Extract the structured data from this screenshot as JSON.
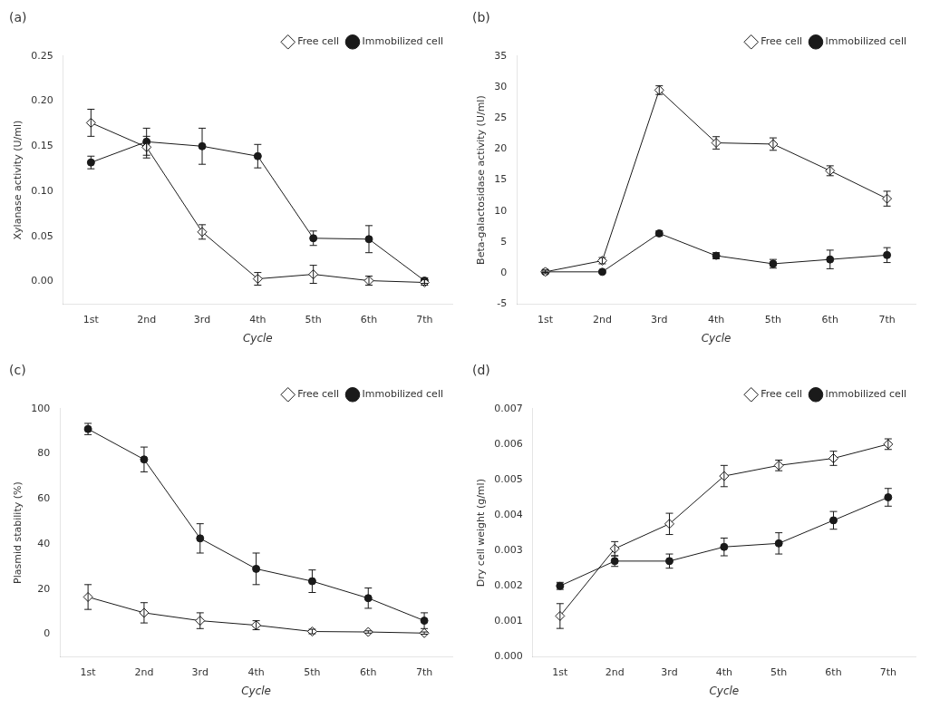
{
  "chart_data": [
    {
      "type": "line",
      "title": "(a)",
      "xlabel": "Cycle",
      "ylabel": "Xylanase activity (U/ml)",
      "categories": [
        "1st",
        "2nd",
        "3rd",
        "4th",
        "5th",
        "6th",
        "7th"
      ],
      "series": [
        {
          "name": "Free cell",
          "color": "#1a1a1a",
          "marker": "diamond",
          "line_style": "solid",
          "values": [
            0.176,
            0.149,
            0.055,
            0.003,
            0.008,
            0.001,
            -0.001
          ],
          "errors": [
            0.015,
            0.012,
            0.008,
            0.007,
            0.01,
            0.005,
            0.003
          ]
        },
        {
          "name": "Immobilized cell",
          "color": "#1a1a1a",
          "marker": "circle",
          "line_style": "solid",
          "values": [
            0.132,
            0.155,
            0.15,
            0.139,
            0.048,
            0.047,
            0.001
          ],
          "errors": [
            0.007,
            0.015,
            0.02,
            0.013,
            0.008,
            0.015,
            0.003
          ]
        }
      ],
      "ylim": [
        -0.025,
        0.25
      ],
      "yticks": [
        {
          "value": 0,
          "label": "0.00"
        },
        0.05,
        {
          "value": 0.1,
          "label": "0.10"
        },
        0.15,
        {
          "value": 0.2,
          "label": "0.20"
        },
        0.25
      ],
      "grid": false,
      "legend": "upper right"
    },
    {
      "type": "line",
      "title": "(b)",
      "xlabel": "Cycle",
      "ylabel": "Beta-galactosidase activity (U/ml)",
      "categories": [
        "1st",
        "2nd",
        "3rd",
        "4th",
        "5th",
        "6th",
        "7th"
      ],
      "series": [
        {
          "name": "Free cell",
          "color": "#1a1a1a",
          "marker": "diamond",
          "line_style": "solid",
          "values": [
            0.2,
            2.0,
            29.5,
            21.0,
            20.8,
            16.5,
            12.0
          ],
          "errors": [
            0.3,
            0.5,
            0.7,
            1.0,
            1.0,
            0.8,
            1.2
          ]
        },
        {
          "name": "Immobilized cell",
          "color": "#1a1a1a",
          "marker": "circle",
          "line_style": "solid",
          "values": [
            0.2,
            0.2,
            6.4,
            2.8,
            1.5,
            2.2,
            2.9
          ],
          "errors": [
            0.1,
            0.2,
            0.4,
            0.5,
            0.7,
            1.5,
            1.2
          ]
        }
      ],
      "ylim": [
        -5,
        35
      ],
      "yticks": [
        -5,
        0,
        5,
        10,
        15,
        20,
        25,
        30,
        35
      ],
      "grid": false,
      "legend": "upper right"
    },
    {
      "type": "line",
      "title": "(c)",
      "xlabel": "Cycle",
      "ylabel": "Plasmid stability (%)",
      "categories": [
        "1st",
        "2nd",
        "3rd",
        "4th",
        "5th",
        "6th",
        "7th"
      ],
      "series": [
        {
          "name": "Free cell",
          "color": "#1a1a1a",
          "marker": "diamond",
          "line_style": "solid",
          "values": [
            16.5,
            9.5,
            6.0,
            4.0,
            1.2,
            1.0,
            0.5
          ],
          "errors": [
            5.5,
            4.5,
            3.5,
            2.0,
            1.0,
            0.5,
            0.5
          ]
        },
        {
          "name": "Immobilized cell",
          "color": "#1a1a1a",
          "marker": "circle",
          "line_style": "solid",
          "values": [
            91.0,
            77.5,
            42.5,
            29.0,
            23.5,
            16.0,
            6.0
          ],
          "errors": [
            2.5,
            5.5,
            6.5,
            7.0,
            5.0,
            4.5,
            3.5
          ]
        }
      ],
      "ylim": [
        -10,
        100
      ],
      "yticks": [
        0,
        20,
        40,
        60,
        80,
        100
      ],
      "grid": false,
      "legend": "upper right"
    },
    {
      "type": "line",
      "title": "(d)",
      "xlabel": "Cycle",
      "ylabel": "Dry cell weight (g/ml)",
      "categories": [
        "1st",
        "2nd",
        "3rd",
        "4th",
        "5th",
        "6th",
        "7th"
      ],
      "series": [
        {
          "name": "Free cell",
          "color": "#1a1a1a",
          "marker": "diamond",
          "line_style": "solid",
          "values": [
            0.00115,
            0.00305,
            0.00375,
            0.0051,
            0.0054,
            0.0056,
            0.006
          ],
          "errors": [
            0.00035,
            0.0002,
            0.0003,
            0.0003,
            0.00015,
            0.0002,
            0.00015
          ]
        },
        {
          "name": "Immobilized cell",
          "color": "#1a1a1a",
          "marker": "circle",
          "line_style": "solid",
          "values": [
            0.002,
            0.0027,
            0.0027,
            0.0031,
            0.0032,
            0.00385,
            0.0045
          ],
          "errors": [
            0.0001,
            0.00015,
            0.0002,
            0.00025,
            0.0003,
            0.00025,
            0.00025
          ]
        }
      ],
      "ylim": [
        0,
        0.007
      ],
      "yticks": [
        {
          "value": 0,
          "label": "0.000"
        },
        {
          "value": 0.001,
          "label": "0.001"
        },
        {
          "value": 0.002,
          "label": "0.002"
        },
        {
          "value": 0.003,
          "label": "0.003"
        },
        {
          "value": 0.004,
          "label": "0.004"
        },
        {
          "value": 0.005,
          "label": "0.005"
        },
        {
          "value": 0.006,
          "label": "0.006"
        },
        {
          "value": 0.007,
          "label": "0.007"
        }
      ],
      "grid": false,
      "legend": "upper right"
    }
  ]
}
